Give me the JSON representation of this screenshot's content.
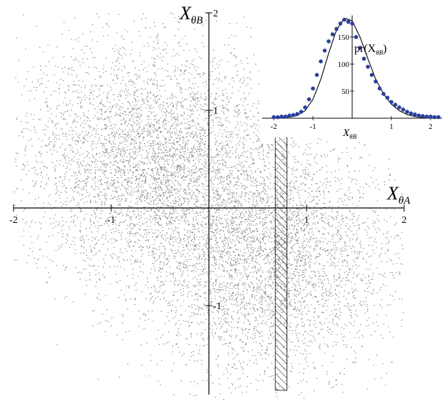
{
  "chart_data": [
    {
      "type": "scatter",
      "title": "",
      "xlabel": "X",
      "xlabel_sub": "θA",
      "ylabel": "X",
      "ylabel_sub": "θB",
      "xlim": [
        -2,
        2
      ],
      "ylim": [
        -2,
        2
      ],
      "x_ticks": [
        -2,
        -1,
        1,
        2
      ],
      "y_ticks": [
        -1,
        1,
        2
      ],
      "x_tick_labels": [
        "-2",
        "-1",
        "1",
        "2"
      ],
      "y_tick_labels": [
        "-1",
        "1",
        "2"
      ],
      "clusters": [
        {
          "cx": -0.6,
          "cy": 0.5,
          "sx": 0.65,
          "sy": 0.6,
          "weight": 0.5
        },
        {
          "cx": 0.6,
          "cy": -0.5,
          "sx": 0.65,
          "sy": 0.6,
          "weight": 0.5
        }
      ],
      "hatched_region": {
        "x_from": 0.68,
        "x_to": 0.8
      },
      "color": "#000000"
    },
    {
      "type": "scatter",
      "title": "",
      "xlabel": "X",
      "xlabel_sub": "θB",
      "ylabel": "pr(X",
      "ylabel_sub": "θB",
      "ylabel_close": ")",
      "xlim": [
        -2.3,
        2.3
      ],
      "ylim": [
        0,
        190
      ],
      "x_ticks": [
        -2,
        -1,
        1,
        2
      ],
      "y_ticks": [
        50,
        100,
        150
      ],
      "x_tick_labels": [
        "-2",
        "-1",
        "1",
        "2"
      ],
      "y_tick_labels": [
        "50",
        "100",
        "150"
      ],
      "series": [
        {
          "kind": "points",
          "color": "#2a3f9e",
          "x": [
            -2.0,
            -1.9,
            -1.8,
            -1.7,
            -1.6,
            -1.5,
            -1.4,
            -1.3,
            -1.2,
            -1.1,
            -1.0,
            -0.9,
            -0.8,
            -0.7,
            -0.6,
            -0.5,
            -0.4,
            -0.3,
            -0.2,
            -0.1,
            0.0,
            0.1,
            0.2,
            0.3,
            0.4,
            0.5,
            0.6,
            0.7,
            0.8,
            0.9,
            1.0,
            1.1,
            1.2,
            1.3,
            1.4,
            1.5,
            1.6,
            1.7,
            1.8,
            1.9,
            2.0,
            2.1,
            2.2
          ],
          "y": [
            2,
            2,
            3,
            3,
            5,
            6,
            8,
            12,
            20,
            35,
            55,
            80,
            105,
            125,
            142,
            155,
            165,
            175,
            182,
            178,
            175,
            150,
            130,
            110,
            95,
            80,
            68,
            55,
            45,
            38,
            30,
            25,
            20,
            16,
            12,
            9,
            7,
            5,
            4,
            3,
            3,
            2,
            2
          ]
        },
        {
          "kind": "line",
          "color": "#000000",
          "x": [
            -2.2,
            -2.0,
            -1.8,
            -1.6,
            -1.4,
            -1.2,
            -1.0,
            -0.8,
            -0.6,
            -0.4,
            -0.2,
            0.0,
            0.2,
            0.4,
            0.6,
            0.8,
            1.0,
            1.2,
            1.4,
            1.6,
            1.8,
            2.0,
            2.2
          ],
          "y": [
            0,
            0,
            1,
            2,
            5,
            14,
            35,
            72,
            120,
            163,
            185,
            180,
            150,
            110,
            72,
            45,
            26,
            14,
            7,
            3,
            1,
            0,
            0
          ]
        }
      ]
    }
  ]
}
